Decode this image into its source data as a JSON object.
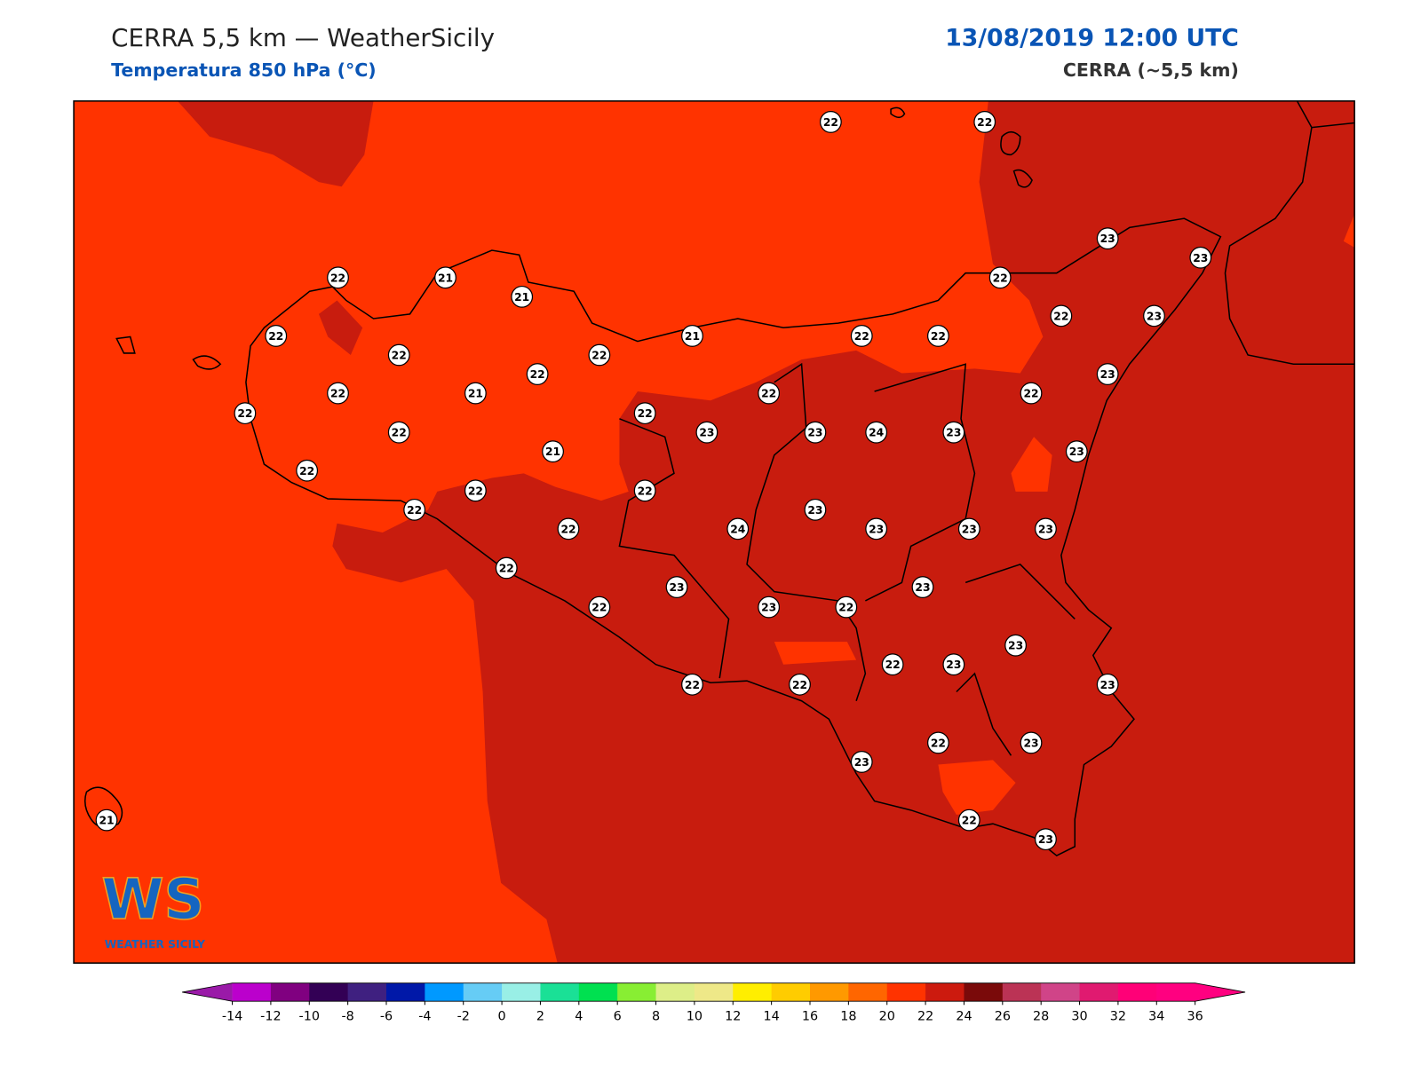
{
  "header": {
    "title": "CERRA 5,5 km — WeatherSicily",
    "subtitle": "Temperatura 850 hPa (°C)",
    "datetime": "13/08/2019 12:00 UTC",
    "model": "CERRA (~5,5 km)"
  },
  "stations": [
    22,
    22,
    23,
    23,
    22,
    21,
    21,
    22,
    22,
    22,
    22,
    21,
    22,
    22,
    22,
    23,
    23,
    22,
    21,
    22,
    22,
    22,
    22,
    22,
    22,
    23,
    23,
    24,
    23,
    23,
    22,
    21,
    22,
    22,
    22,
    22,
    24,
    23,
    23,
    23,
    23,
    22,
    23,
    23,
    22,
    23,
    22,
    23,
    22,
    23,
    22,
    22,
    23,
    22,
    23,
    23,
    22,
    23,
    21
  ],
  "colorbar": {
    "ticks": [
      -14,
      -12,
      -10,
      -8,
      -6,
      -4,
      -2,
      0,
      2,
      4,
      6,
      8,
      10,
      12,
      14,
      16,
      18,
      20,
      22,
      24,
      26,
      28,
      30,
      32,
      34,
      36
    ],
    "under": "#9a1aa8",
    "over": "#ff0080",
    "colors": [
      "#bb00cc",
      "#800080",
      "#330055",
      "#3f2080",
      "#0018a8",
      "#0099ff",
      "#66ccf5",
      "#99efe6",
      "#1ae096",
      "#00e050",
      "#88ee33",
      "#ddee88",
      "#eee888",
      "#ffee00",
      "#ffcc00",
      "#ff9900",
      "#ff6600",
      "#ff3300",
      "#cc1a0e",
      "#7a0a0a",
      "#bb3355",
      "#d04488",
      "#e01a70",
      "#ff0077",
      "#ff0080"
    ]
  },
  "logo": {
    "mark": "WS",
    "name": "WEATHER SICILY"
  }
}
